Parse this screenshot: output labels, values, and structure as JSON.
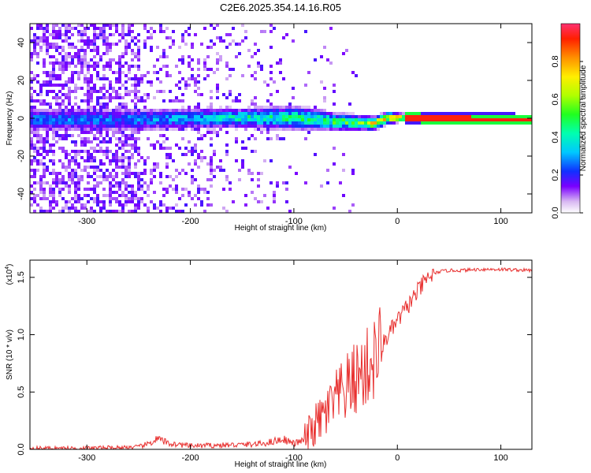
{
  "title": "C2E6.2025.354.14.16.R05",
  "colors": {
    "signal": "#e8302f",
    "axis": "#000000",
    "line_color": "#e83030",
    "core_color": "#ff2020"
  },
  "chart_data": [
    {
      "type": "heatmap",
      "title": "C2E6.2025.354.14.16.R05",
      "xlabel": "Height of straight line (km)",
      "ylabel": "Frequency (Hz)",
      "xlim": [
        -355,
        130
      ],
      "ylim": [
        -50,
        50
      ],
      "xticks": [
        -300,
        -200,
        -100,
        0,
        100
      ],
      "yticks": [
        -40,
        -20,
        0,
        20,
        40
      ],
      "colorbar": {
        "label": "Normalized spectral amplitude",
        "range": [
          0,
          1
        ],
        "ticks": [
          "0.0",
          "0.2",
          "0.4",
          "0.6",
          "0.8"
        ]
      },
      "description_points": {
        "band_center_hz": [
          [
            -270,
            0
          ],
          [
            -150,
            1
          ],
          [
            -100,
            1
          ],
          [
            -60,
            -1
          ],
          [
            -25,
            -2
          ],
          [
            -10,
            1
          ],
          [
            0,
            1
          ],
          [
            130,
            0
          ]
        ],
        "band_halfwidth_hz": [
          [
            -270,
            6
          ],
          [
            -150,
            5
          ],
          [
            -100,
            6
          ],
          [
            -50,
            4
          ],
          [
            -10,
            3
          ],
          [
            0,
            2
          ],
          [
            130,
            2
          ]
        ],
        "band_peak_amplitude": [
          [
            -270,
            0.3
          ],
          [
            -200,
            0.35
          ],
          [
            -150,
            0.45
          ],
          [
            -100,
            0.5
          ],
          [
            -60,
            0.55
          ],
          [
            -20,
            0.8
          ],
          [
            0,
            0.95
          ],
          [
            130,
            0.95
          ]
        ]
      }
    },
    {
      "type": "line",
      "xlabel": "Height of straight line (km)",
      "ylabel": "SNR (10 * v/v)",
      "scale_label": "(x10",
      "scale_exp": "4",
      "xlim": [
        -355,
        130
      ],
      "ylim": [
        0,
        1.65
      ],
      "xticks": [
        -300,
        -200,
        -100,
        0,
        100
      ],
      "yticks": [
        "0.0",
        "0.5",
        "1.0",
        "1.5"
      ],
      "series": [
        {
          "name": "SNR",
          "x": [
            -355,
            -300,
            -250,
            -240,
            -232,
            -220,
            -200,
            -150,
            -130,
            -120,
            -110,
            -100,
            -90,
            -80,
            -70,
            -60,
            -50,
            -40,
            -30,
            -25,
            -20,
            -15,
            -10,
            -5,
            0,
            10,
            20,
            30,
            40,
            50,
            60,
            80,
            100,
            130
          ],
          "y": [
            0.01,
            0.01,
            0.02,
            0.05,
            0.09,
            0.05,
            0.03,
            0.04,
            0.05,
            0.07,
            0.09,
            0.05,
            0.08,
            0.2,
            0.3,
            0.42,
            0.52,
            0.62,
            0.7,
            0.75,
            0.82,
            0.9,
            0.98,
            1.05,
            1.12,
            1.25,
            1.38,
            1.5,
            1.55,
            1.56,
            1.56,
            1.57,
            1.57,
            1.56
          ]
        }
      ]
    }
  ]
}
